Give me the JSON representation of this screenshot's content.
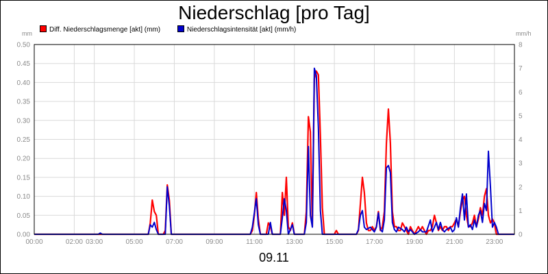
{
  "chart_data": {
    "type": "line",
    "title": "Niederschlag [pro Tag]",
    "date_label": "09.11",
    "ylabel_left": "mm",
    "ylabel_right": "mm/h",
    "ylim_left": [
      0,
      0.5
    ],
    "ylim_right": [
      0,
      8
    ],
    "xlim_hours": [
      0,
      24
    ],
    "yticks_left": [
      "0.00",
      "0.05",
      "0.10",
      "0.15",
      "0.20",
      "0.25",
      "0.30",
      "0.35",
      "0.40",
      "0.45",
      "0.50"
    ],
    "yticks_right": [
      "0",
      "1",
      "2",
      "3",
      "4",
      "5",
      "6",
      "7",
      "8"
    ],
    "xticks": [
      {
        "h": 0,
        "label": "00:00"
      },
      {
        "h": 2,
        "label": "02:00"
      },
      {
        "h": 3,
        "label": "03:00"
      },
      {
        "h": 5,
        "label": "05:00"
      },
      {
        "h": 7,
        "label": "07:00"
      },
      {
        "h": 9,
        "label": "09:00"
      },
      {
        "h": 11,
        "label": "11:00"
      },
      {
        "h": 13,
        "label": "13:00"
      },
      {
        "h": 15,
        "label": "15:00"
      },
      {
        "h": 17,
        "label": "17:00"
      },
      {
        "h": 19,
        "label": "19:00"
      },
      {
        "h": 21,
        "label": "21:00"
      },
      {
        "h": 23,
        "label": "23:00"
      }
    ],
    "grid": true,
    "legend_position": "top-left",
    "series": [
      {
        "name": "Diff. Niederschlagsmenge [akt] (mm)",
        "color": "#ff0000",
        "axis": "left",
        "points": [
          [
            0,
            0
          ],
          [
            5.7,
            0
          ],
          [
            5.8,
            0.03
          ],
          [
            5.9,
            0.09
          ],
          [
            6.0,
            0.06
          ],
          [
            6.1,
            0.05
          ],
          [
            6.2,
            0
          ],
          [
            6.45,
            0
          ],
          [
            6.55,
            0.01
          ],
          [
            6.65,
            0.13
          ],
          [
            6.75,
            0.09
          ],
          [
            6.85,
            0
          ],
          [
            10.8,
            0
          ],
          [
            10.9,
            0.01
          ],
          [
            11.0,
            0.05
          ],
          [
            11.1,
            0.11
          ],
          [
            11.2,
            0.04
          ],
          [
            11.3,
            0
          ],
          [
            11.6,
            0
          ],
          [
            11.7,
            0.03
          ],
          [
            11.8,
            0.02
          ],
          [
            11.9,
            0
          ],
          [
            12.3,
            0
          ],
          [
            12.4,
            0.11
          ],
          [
            12.5,
            0.05
          ],
          [
            12.6,
            0.15
          ],
          [
            12.7,
            0.02
          ],
          [
            12.8,
            0.01
          ],
          [
            12.9,
            0.03
          ],
          [
            13.0,
            0
          ],
          [
            13.5,
            0
          ],
          [
            13.6,
            0.06
          ],
          [
            13.7,
            0.31
          ],
          [
            13.8,
            0.27
          ],
          [
            13.9,
            0.02
          ],
          [
            14.0,
            0.41
          ],
          [
            14.1,
            0.43
          ],
          [
            14.2,
            0.42
          ],
          [
            14.3,
            0.26
          ],
          [
            14.4,
            0.07
          ],
          [
            14.5,
            0
          ],
          [
            15.0,
            0
          ],
          [
            15.1,
            0.01
          ],
          [
            15.2,
            0
          ],
          [
            16.1,
            0
          ],
          [
            16.2,
            0.01
          ],
          [
            16.3,
            0.08
          ],
          [
            16.4,
            0.15
          ],
          [
            16.5,
            0.11
          ],
          [
            16.6,
            0.03
          ],
          [
            16.7,
            0.01
          ],
          [
            16.8,
            0.01
          ],
          [
            16.9,
            0.02
          ],
          [
            17.0,
            0.01
          ],
          [
            17.1,
            0.02
          ],
          [
            17.2,
            0.06
          ],
          [
            17.3,
            0.01
          ],
          [
            17.4,
            0.02
          ],
          [
            17.5,
            0.06
          ],
          [
            17.6,
            0.24
          ],
          [
            17.7,
            0.33
          ],
          [
            17.8,
            0.24
          ],
          [
            17.9,
            0.06
          ],
          [
            18.0,
            0.02
          ],
          [
            18.1,
            0.02
          ],
          [
            18.2,
            0.01
          ],
          [
            18.3,
            0.01
          ],
          [
            18.4,
            0.03
          ],
          [
            18.5,
            0.02
          ],
          [
            18.6,
            0.01
          ],
          [
            18.7,
            0
          ],
          [
            18.8,
            0.02
          ],
          [
            18.9,
            0.01
          ],
          [
            19.0,
            0
          ],
          [
            19.1,
            0.01
          ],
          [
            19.2,
            0.02
          ],
          [
            19.3,
            0.01
          ],
          [
            19.4,
            0.02
          ],
          [
            19.5,
            0.01
          ],
          [
            19.6,
            0
          ],
          [
            19.7,
            0.01
          ],
          [
            19.8,
            0.01
          ],
          [
            19.9,
            0.02
          ],
          [
            20.0,
            0.05
          ],
          [
            20.1,
            0.03
          ],
          [
            20.2,
            0.01
          ],
          [
            20.3,
            0.02
          ],
          [
            20.4,
            0.01
          ],
          [
            20.5,
            0.02
          ],
          [
            20.6,
            0.02
          ],
          [
            20.7,
            0.01
          ],
          [
            20.8,
            0.02
          ],
          [
            20.9,
            0.02
          ],
          [
            21.0,
            0.03
          ],
          [
            21.1,
            0.04
          ],
          [
            21.2,
            0.02
          ],
          [
            21.3,
            0.06
          ],
          [
            21.4,
            0.09
          ],
          [
            21.5,
            0.1
          ],
          [
            21.6,
            0.05
          ],
          [
            21.7,
            0.02
          ],
          [
            21.8,
            0.02
          ],
          [
            21.9,
            0.03
          ],
          [
            22.0,
            0.05
          ],
          [
            22.1,
            0.02
          ],
          [
            22.2,
            0.04
          ],
          [
            22.3,
            0.07
          ],
          [
            22.4,
            0.05
          ],
          [
            22.5,
            0.1
          ],
          [
            22.6,
            0.12
          ],
          [
            22.7,
            0.05
          ],
          [
            22.8,
            0.03
          ],
          [
            22.9,
            0.04
          ],
          [
            23.0,
            0.03
          ],
          [
            23.1,
            0
          ],
          [
            23.2,
            0
          ],
          [
            24.0,
            0
          ]
        ]
      },
      {
        "name": "Niederschlagsintensität [akt] (mm/h)",
        "color": "#0000cc",
        "axis": "right",
        "points": [
          [
            0,
            0
          ],
          [
            3.2,
            0
          ],
          [
            3.3,
            0.05
          ],
          [
            3.4,
            0
          ],
          [
            5.7,
            0
          ],
          [
            5.8,
            0.4
          ],
          [
            5.9,
            0.3
          ],
          [
            6.0,
            0.5
          ],
          [
            6.1,
            0.2
          ],
          [
            6.2,
            0
          ],
          [
            6.55,
            0
          ],
          [
            6.65,
            2.0
          ],
          [
            6.75,
            1.2
          ],
          [
            6.85,
            0
          ],
          [
            10.8,
            0
          ],
          [
            10.9,
            0.3
          ],
          [
            11.0,
            0.9
          ],
          [
            11.1,
            1.5
          ],
          [
            11.2,
            0.4
          ],
          [
            11.3,
            0
          ],
          [
            11.7,
            0
          ],
          [
            11.8,
            0.5
          ],
          [
            11.9,
            0
          ],
          [
            12.3,
            0
          ],
          [
            12.4,
            0.7
          ],
          [
            12.5,
            1.5
          ],
          [
            12.6,
            1.0
          ],
          [
            12.7,
            0
          ],
          [
            12.9,
            0.4
          ],
          [
            13.0,
            0
          ],
          [
            13.5,
            0
          ],
          [
            13.6,
            0.5
          ],
          [
            13.7,
            3.7
          ],
          [
            13.8,
            0.8
          ],
          [
            13.9,
            0.3
          ],
          [
            14.0,
            7.0
          ],
          [
            14.1,
            6.7
          ],
          [
            14.2,
            4.5
          ],
          [
            14.3,
            1.0
          ],
          [
            14.4,
            0
          ],
          [
            16.1,
            0
          ],
          [
            16.2,
            0.2
          ],
          [
            16.3,
            0.8
          ],
          [
            16.4,
            1.0
          ],
          [
            16.5,
            0.3
          ],
          [
            16.6,
            0.2
          ],
          [
            16.8,
            0.3
          ],
          [
            16.9,
            0.2
          ],
          [
            17.0,
            0.1
          ],
          [
            17.1,
            0.3
          ],
          [
            17.2,
            0.9
          ],
          [
            17.3,
            0.2
          ],
          [
            17.4,
            0.1
          ],
          [
            17.5,
            0.6
          ],
          [
            17.6,
            2.8
          ],
          [
            17.7,
            2.9
          ],
          [
            17.8,
            2.6
          ],
          [
            17.9,
            0.5
          ],
          [
            18.0,
            0.2
          ],
          [
            18.1,
            0.1
          ],
          [
            18.2,
            0.3
          ],
          [
            18.4,
            0.2
          ],
          [
            18.5,
            0.1
          ],
          [
            18.6,
            0.3
          ],
          [
            18.7,
            0.1
          ],
          [
            18.8,
            0.2
          ],
          [
            19.0,
            0
          ],
          [
            19.2,
            0.1
          ],
          [
            19.3,
            0.2
          ],
          [
            19.4,
            0.1
          ],
          [
            19.6,
            0.1
          ],
          [
            19.8,
            0.6
          ],
          [
            19.9,
            0.1
          ],
          [
            20.0,
            0.3
          ],
          [
            20.1,
            0.5
          ],
          [
            20.2,
            0.2
          ],
          [
            20.3,
            0.5
          ],
          [
            20.4,
            0.2
          ],
          [
            20.5,
            0.1
          ],
          [
            20.6,
            0.2
          ],
          [
            20.8,
            0.3
          ],
          [
            20.9,
            0.1
          ],
          [
            21.0,
            0.2
          ],
          [
            21.1,
            0.7
          ],
          [
            21.2,
            0.3
          ],
          [
            21.3,
            1.1
          ],
          [
            21.4,
            1.7
          ],
          [
            21.5,
            0.6
          ],
          [
            21.6,
            1.7
          ],
          [
            21.7,
            0.3
          ],
          [
            21.8,
            0.4
          ],
          [
            21.9,
            0.2
          ],
          [
            22.0,
            0.6
          ],
          [
            22.1,
            0.3
          ],
          [
            22.2,
            0.8
          ],
          [
            22.3,
            1.0
          ],
          [
            22.4,
            0.5
          ],
          [
            22.5,
            1.3
          ],
          [
            22.6,
            1.0
          ],
          [
            22.7,
            3.5
          ],
          [
            22.8,
            2.0
          ],
          [
            22.9,
            0.3
          ],
          [
            23.0,
            0.5
          ],
          [
            23.1,
            0.3
          ],
          [
            23.2,
            0
          ],
          [
            24.0,
            0
          ]
        ]
      }
    ]
  }
}
